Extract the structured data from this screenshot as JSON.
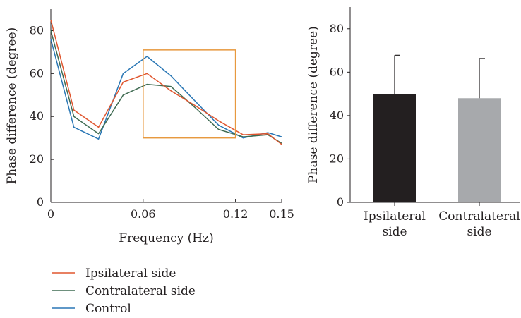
{
  "chart_data": [
    {
      "type": "line",
      "xlabel": "Frequency (Hz)",
      "ylabel": "Phase difference (degree)",
      "xlim": [
        0,
        0.15
      ],
      "ylim": [
        0,
        90
      ],
      "xticks": [
        0,
        0.06,
        0.12,
        0.15
      ],
      "xtick_labels": [
        "0",
        "0.06",
        "0.12",
        "0.15"
      ],
      "yticks": [
        0,
        20,
        40,
        60,
        80
      ],
      "ytick_labels": [
        "0",
        "20",
        "40",
        "60",
        "80"
      ],
      "x": [
        0,
        0.015,
        0.031,
        0.047,
        0.0625,
        0.078,
        0.094,
        0.109,
        0.125,
        0.141,
        0.15
      ],
      "series": [
        {
          "name": "Ipsilateral side",
          "color": "#e0562f",
          "values": [
            85,
            43,
            35,
            56,
            60,
            52,
            45,
            38,
            31.5,
            32,
            27
          ]
        },
        {
          "name": "Contralateral side",
          "color": "#3f6b52",
          "values": [
            80,
            40,
            32,
            50,
            55,
            54,
            44,
            34,
            30.5,
            31.5,
            27.5
          ]
        },
        {
          "name": "Control",
          "color": "#2a77b5",
          "values": [
            76,
            35,
            29.5,
            60,
            68,
            59,
            47,
            36,
            30,
            32.5,
            30.5
          ]
        }
      ],
      "highlight_box": {
        "color": "#e7993f",
        "x_range": [
          0.06,
          0.12
        ],
        "y_range": [
          30,
          71
        ]
      },
      "legend_position": "bottom-left"
    },
    {
      "type": "bar",
      "ylabel": "Phase difference (degree)",
      "ylim": [
        0,
        90
      ],
      "yticks": [
        0,
        20,
        40,
        60,
        80
      ],
      "ytick_labels": [
        "0",
        "20",
        "40",
        "60",
        "80"
      ],
      "categories": [
        [
          "Ipsilateral",
          "side"
        ],
        [
          "Contralateral",
          "side"
        ]
      ],
      "values": [
        49.8,
        48
      ],
      "errors": [
        18,
        18.3
      ],
      "colors": [
        "#231f20",
        "#a7a9ac"
      ]
    }
  ]
}
